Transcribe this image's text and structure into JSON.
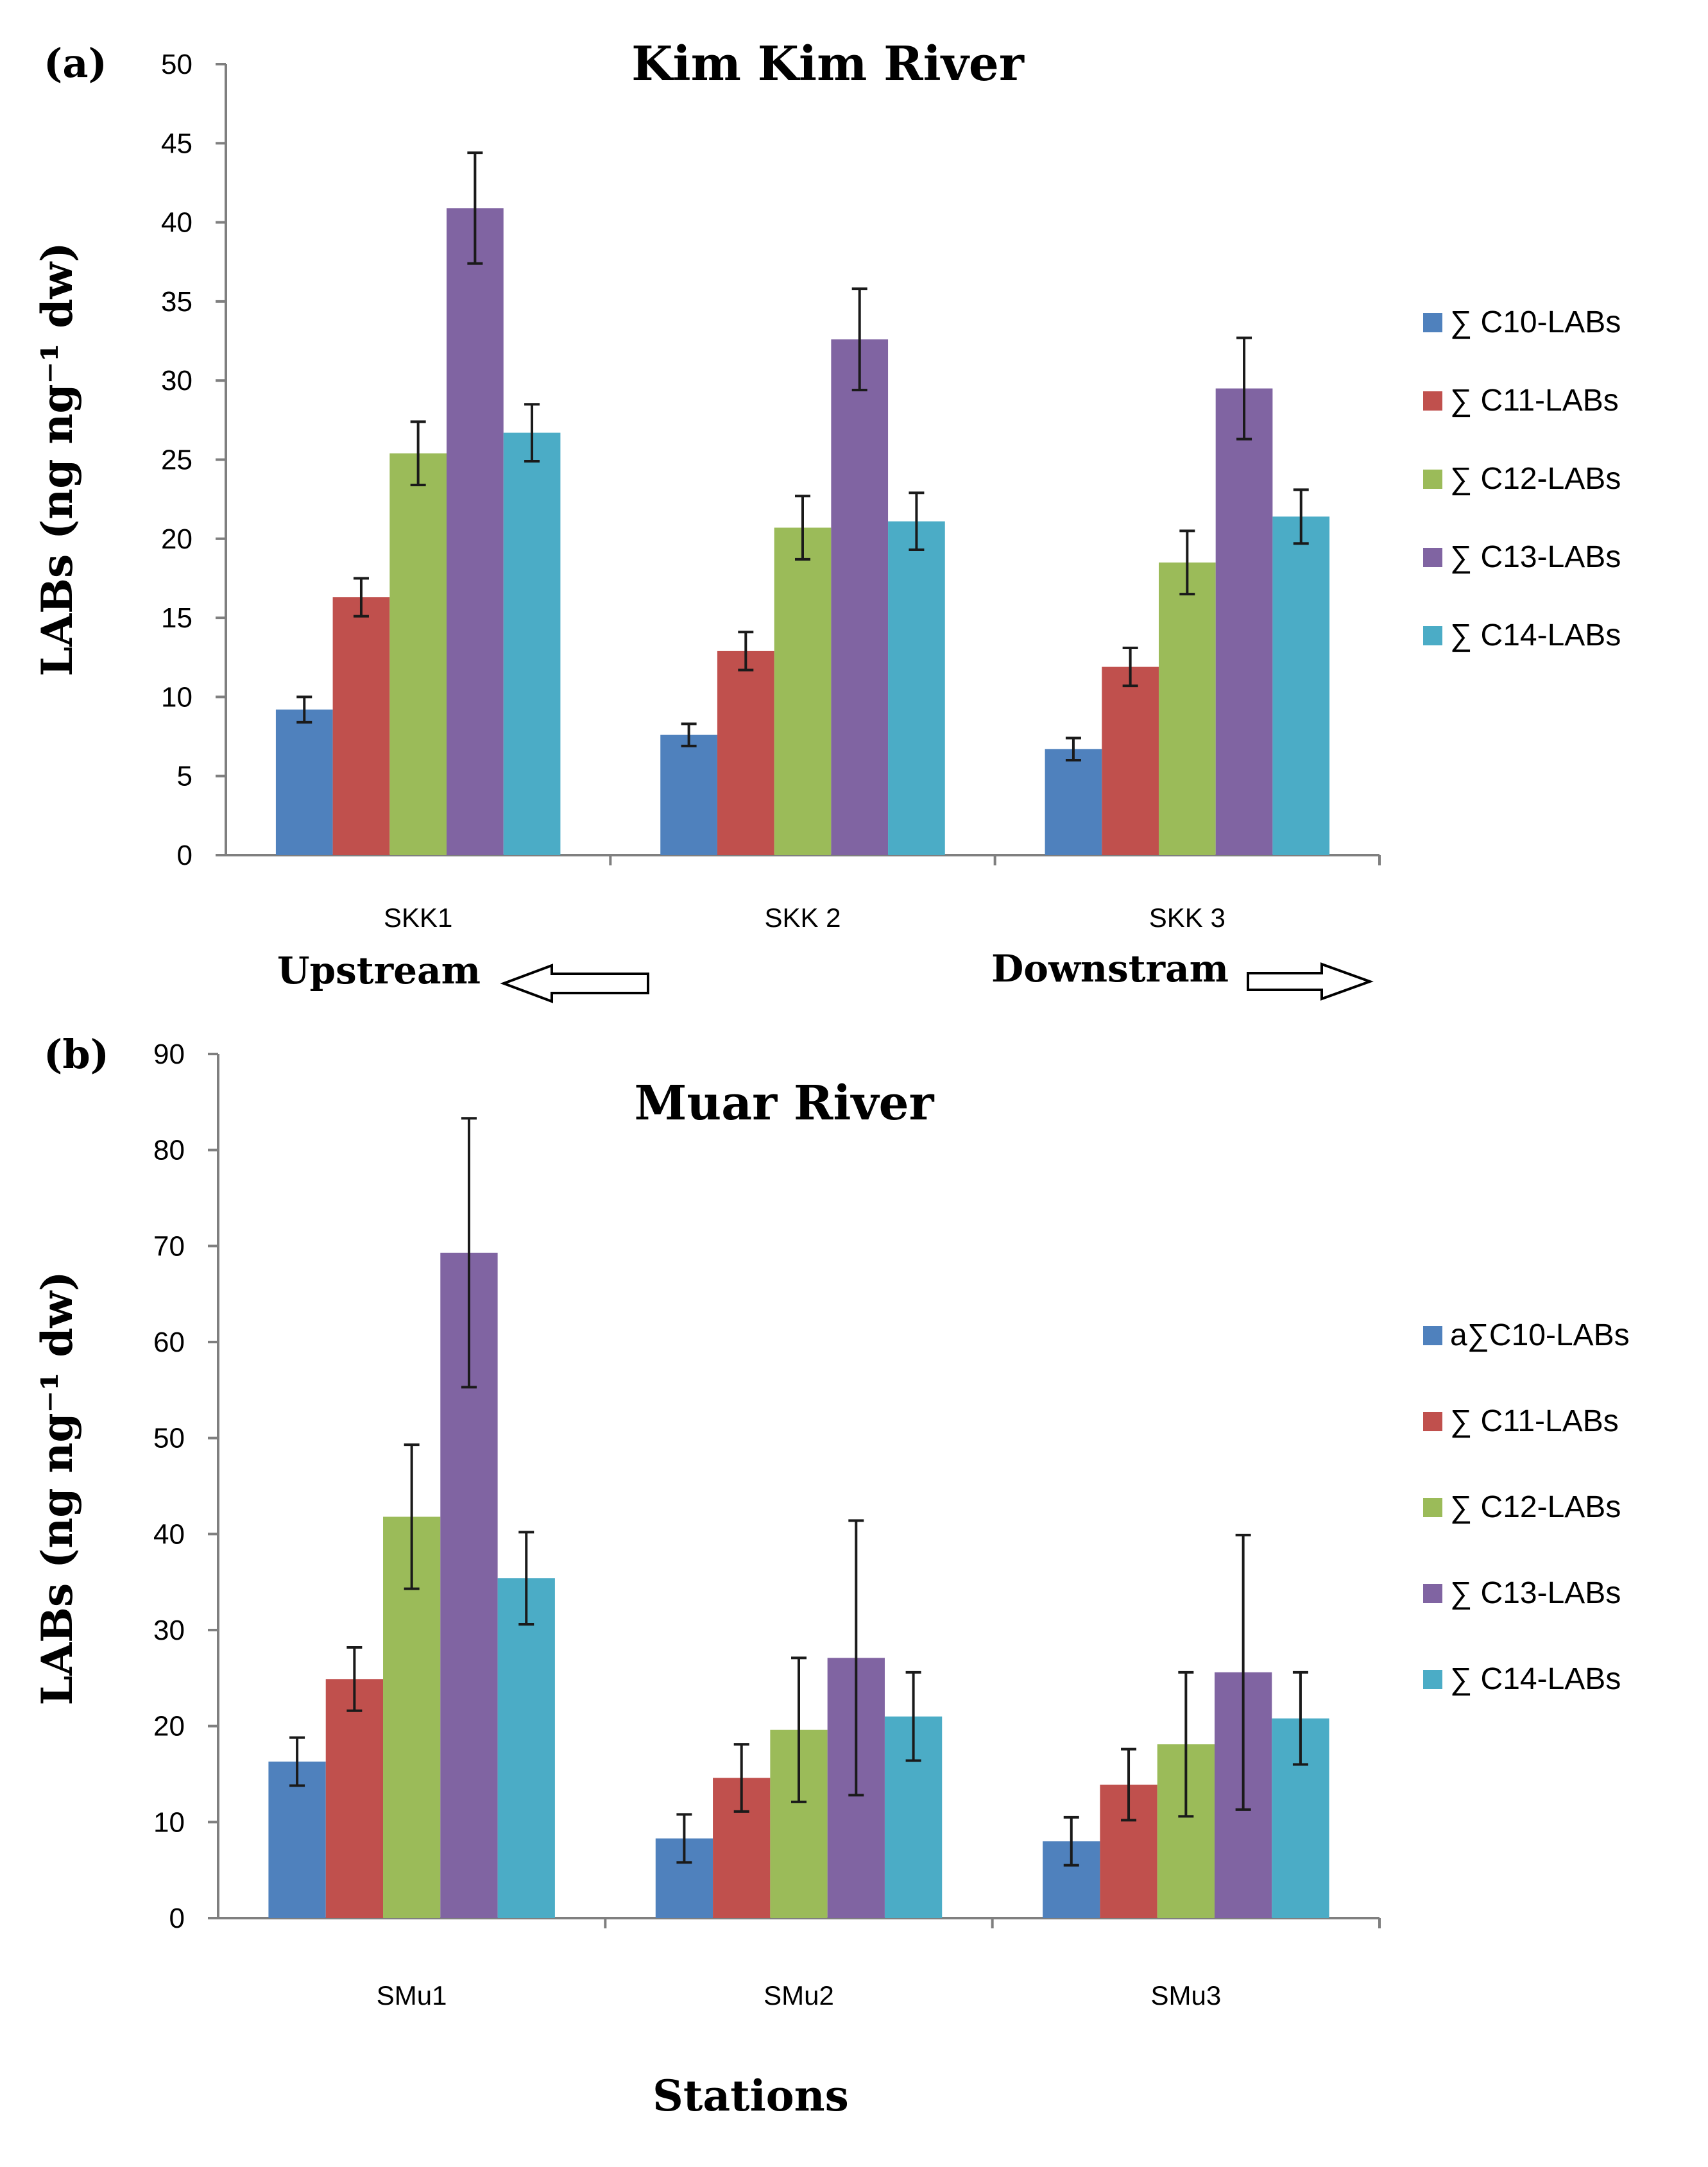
{
  "figure": {
    "xlabel": "Stations",
    "upstream_label": "Upstream",
    "downstream_label": "Downstram"
  },
  "chart_data": [
    {
      "type": "bar",
      "panel_label": "(a)",
      "title": "Kim Kim River",
      "ylabel": "LABs (ng ng⁻¹ dw)",
      "ylim": [
        0,
        50
      ],
      "yticks": [
        0,
        5,
        10,
        15,
        20,
        25,
        30,
        35,
        40,
        45,
        50
      ],
      "categories": [
        "SKK1",
        "SKK 2",
        "SKK 3"
      ],
      "series": [
        {
          "name": "∑ C10-LABs",
          "color": "#4f81bd",
          "values": [
            9.2,
            7.6,
            6.7
          ],
          "errors": [
            0.8,
            0.7,
            0.7
          ]
        },
        {
          "name": "∑ C11-LABs",
          "color": "#c0504d",
          "values": [
            16.3,
            12.9,
            11.9
          ],
          "errors": [
            1.2,
            1.2,
            1.2
          ]
        },
        {
          "name": "∑ C12-LABs",
          "color": "#9bbb59",
          "values": [
            25.4,
            20.7,
            18.5
          ],
          "errors": [
            2.0,
            2.0,
            2.0
          ]
        },
        {
          "name": "∑ C13-LABs",
          "color": "#8064a2",
          "values": [
            40.9,
            32.6,
            29.5
          ],
          "errors": [
            3.5,
            3.2,
            3.2
          ]
        },
        {
          "name": "∑ C14-LABs",
          "color": "#4bacc6",
          "values": [
            26.7,
            21.1,
            21.4
          ],
          "errors": [
            1.8,
            1.8,
            1.7
          ]
        }
      ],
      "legend_position": "right"
    },
    {
      "type": "bar",
      "panel_label": "(b)",
      "title": "Muar River",
      "ylabel": "LABs (ng ng⁻¹ dw)",
      "ylim": [
        0,
        90
      ],
      "yticks": [
        0,
        10,
        20,
        30,
        40,
        50,
        60,
        70,
        80,
        90
      ],
      "categories": [
        "SMu1",
        "SMu2",
        "SMu3"
      ],
      "series": [
        {
          "name": "a∑C10-LABs",
          "color": "#4f81bd",
          "values": [
            16.3,
            8.3,
            8.0
          ],
          "errors": [
            2.5,
            2.5,
            2.5
          ]
        },
        {
          "name": "∑ C11-LABs",
          "color": "#c0504d",
          "values": [
            24.9,
            14.6,
            13.9
          ],
          "errors": [
            3.3,
            3.5,
            3.7
          ]
        },
        {
          "name": "∑ C12-LABs",
          "color": "#9bbb59",
          "values": [
            41.8,
            19.6,
            18.1
          ],
          "errors": [
            7.5,
            7.5,
            7.5
          ]
        },
        {
          "name": "∑ C13-LABs",
          "color": "#8064a2",
          "values": [
            69.3,
            27.1,
            25.6
          ],
          "errors": [
            14.0,
            14.3,
            14.3
          ]
        },
        {
          "name": "∑ C14-LABs",
          "color": "#4bacc6",
          "values": [
            35.4,
            21.0,
            20.8
          ],
          "errors": [
            4.8,
            4.6,
            4.8
          ]
        }
      ],
      "legend_position": "right"
    }
  ]
}
